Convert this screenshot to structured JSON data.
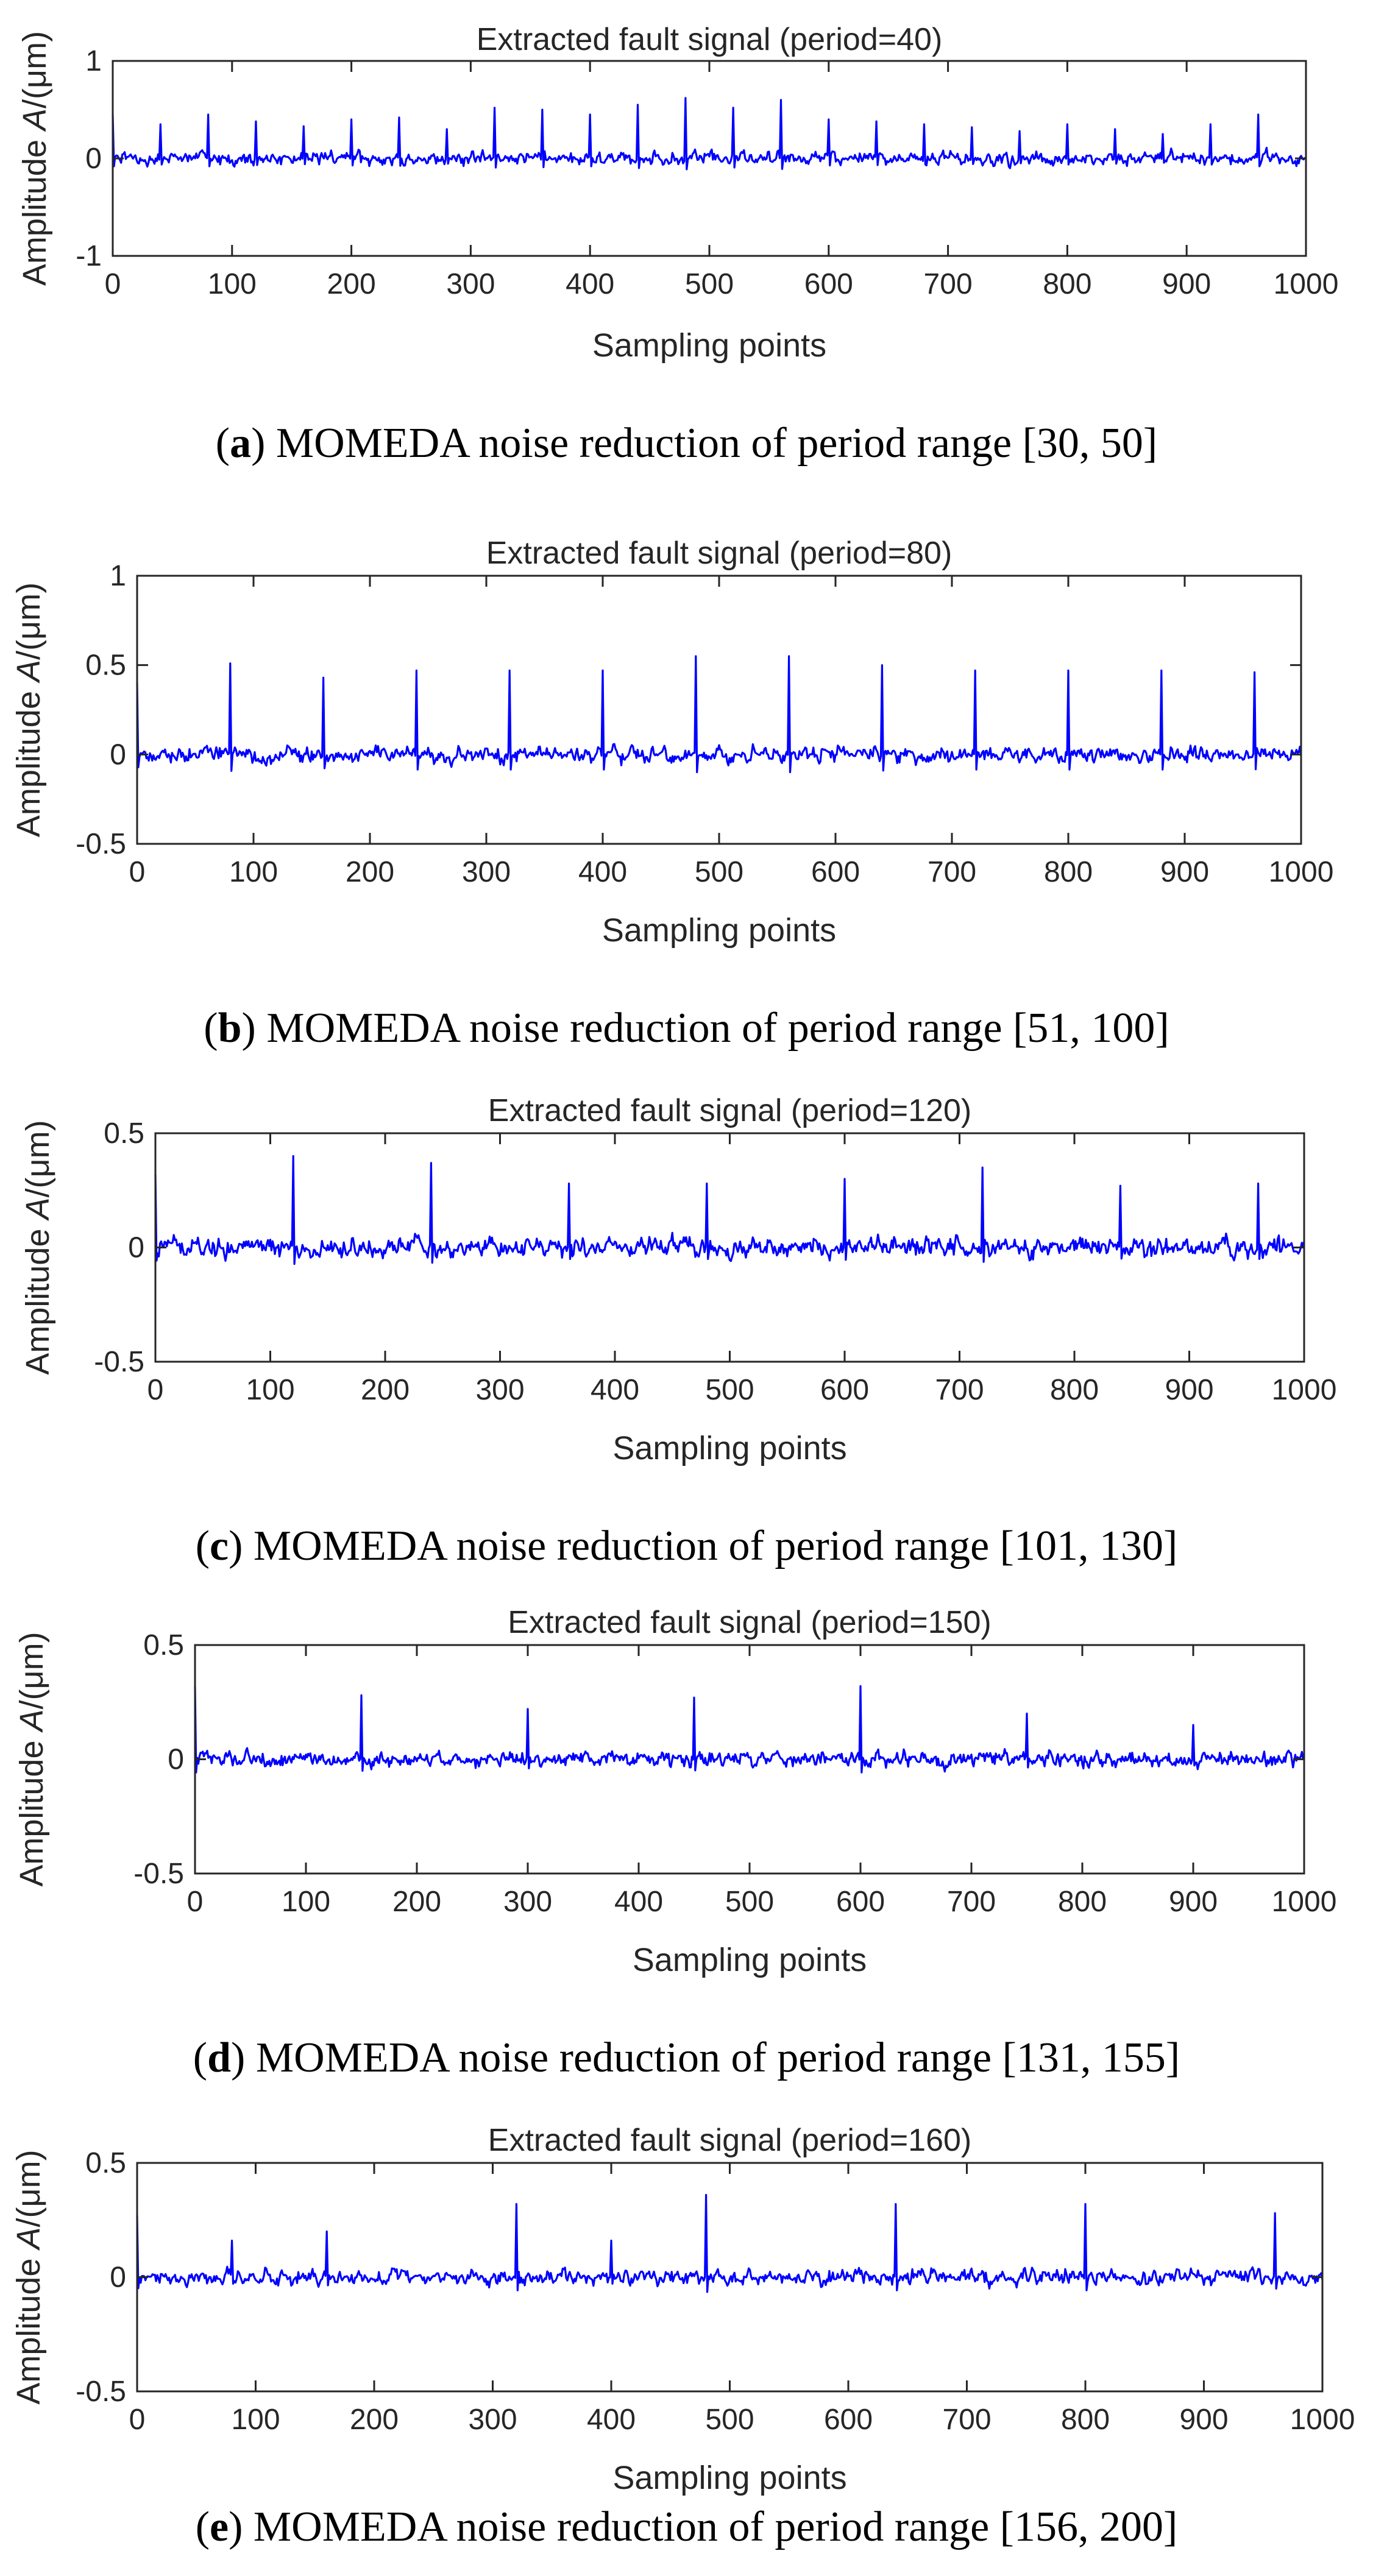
{
  "figure": {
    "ylabel_prefix": "Amplitude ",
    "ylabel_var": "A",
    "ylabel_suffix": "/(μm)"
  },
  "chart_data": [
    {
      "type": "line",
      "title": "Extracted fault signal (period=40)",
      "xlabel": "Sampling points",
      "ylabel": "Amplitude A/(μm)",
      "xlim": [
        0,
        1000
      ],
      "ylim": [
        -1,
        1
      ],
      "xticks": [
        0,
        100,
        200,
        300,
        400,
        500,
        600,
        700,
        800,
        900,
        1000
      ],
      "yticks": [
        -1,
        0,
        1
      ],
      "period": 40,
      "spikes": [
        {
          "x": 0,
          "y": 0.45
        },
        {
          "x": 40,
          "y": 0.35
        },
        {
          "x": 80,
          "y": 0.45
        },
        {
          "x": 120,
          "y": 0.38
        },
        {
          "x": 160,
          "y": 0.33
        },
        {
          "x": 200,
          "y": 0.4
        },
        {
          "x": 240,
          "y": 0.42
        },
        {
          "x": 280,
          "y": 0.3
        },
        {
          "x": 320,
          "y": 0.52
        },
        {
          "x": 360,
          "y": 0.5
        },
        {
          "x": 400,
          "y": 0.45
        },
        {
          "x": 440,
          "y": 0.55
        },
        {
          "x": 480,
          "y": 0.62
        },
        {
          "x": 520,
          "y": 0.52
        },
        {
          "x": 560,
          "y": 0.6
        },
        {
          "x": 600,
          "y": 0.4
        },
        {
          "x": 640,
          "y": 0.38
        },
        {
          "x": 680,
          "y": 0.35
        },
        {
          "x": 720,
          "y": 0.32
        },
        {
          "x": 760,
          "y": 0.28
        },
        {
          "x": 800,
          "y": 0.35
        },
        {
          "x": 840,
          "y": 0.3
        },
        {
          "x": 880,
          "y": 0.25
        },
        {
          "x": 920,
          "y": 0.35
        },
        {
          "x": 960,
          "y": 0.45
        }
      ],
      "noise_amplitude": 0.12,
      "caption_label": "a",
      "caption_text": "MOMEDA noise reduction of period range [30, 50]"
    },
    {
      "type": "line",
      "title": "Extracted fault signal (period=80)",
      "xlabel": "Sampling points",
      "ylabel": "Amplitude A/(μm)",
      "xlim": [
        0,
        1000
      ],
      "ylim": [
        -0.5,
        1
      ],
      "xticks": [
        0,
        100,
        200,
        300,
        400,
        500,
        600,
        700,
        800,
        900,
        1000
      ],
      "yticks": [
        -0.5,
        0,
        0.5,
        1
      ],
      "period": 80,
      "spikes": [
        {
          "x": 0,
          "y": 0.4
        },
        {
          "x": 80,
          "y": 0.51
        },
        {
          "x": 160,
          "y": 0.43
        },
        {
          "x": 240,
          "y": 0.47
        },
        {
          "x": 320,
          "y": 0.47
        },
        {
          "x": 400,
          "y": 0.47
        },
        {
          "x": 480,
          "y": 0.55
        },
        {
          "x": 560,
          "y": 0.55
        },
        {
          "x": 640,
          "y": 0.5
        },
        {
          "x": 720,
          "y": 0.47
        },
        {
          "x": 800,
          "y": 0.47
        },
        {
          "x": 880,
          "y": 0.47
        },
        {
          "x": 960,
          "y": 0.46
        }
      ],
      "noise_amplitude": 0.08,
      "caption_label": "b",
      "caption_text": "MOMEDA noise reduction of period range [51, 100]"
    },
    {
      "type": "line",
      "title": "Extracted fault signal (period=120)",
      "xlabel": "Sampling points",
      "ylabel": "Amplitude A/(μm)",
      "xlim": [
        0,
        1000
      ],
      "ylim": [
        -0.5,
        0.5
      ],
      "xticks": [
        0,
        100,
        200,
        300,
        400,
        500,
        600,
        700,
        800,
        900,
        1000
      ],
      "yticks": [
        -0.5,
        0,
        0.5
      ],
      "period": 120,
      "spikes": [
        {
          "x": 0,
          "y": 0.32
        },
        {
          "x": 120,
          "y": 0.4
        },
        {
          "x": 240,
          "y": 0.37
        },
        {
          "x": 360,
          "y": 0.28
        },
        {
          "x": 480,
          "y": 0.28
        },
        {
          "x": 600,
          "y": 0.3
        },
        {
          "x": 720,
          "y": 0.35
        },
        {
          "x": 840,
          "y": 0.27
        },
        {
          "x": 960,
          "y": 0.28
        }
      ],
      "noise_amplitude": 0.08,
      "caption_label": "c",
      "caption_text": "MOMEDA noise reduction of period range [101, 130]"
    },
    {
      "type": "line",
      "title": "Extracted fault signal (period=150)",
      "xlabel": "Sampling points",
      "ylabel": "Amplitude A/(μm)",
      "xlim": [
        0,
        1000
      ],
      "ylim": [
        -0.5,
        0.5
      ],
      "xticks": [
        0,
        100,
        200,
        300,
        400,
        500,
        600,
        700,
        800,
        900,
        1000
      ],
      "yticks": [
        -0.5,
        0,
        0.5
      ],
      "period": 150,
      "spikes": [
        {
          "x": 0,
          "y": 0.32
        },
        {
          "x": 150,
          "y": 0.28
        },
        {
          "x": 300,
          "y": 0.22
        },
        {
          "x": 450,
          "y": 0.27
        },
        {
          "x": 600,
          "y": 0.32
        },
        {
          "x": 750,
          "y": 0.2
        },
        {
          "x": 900,
          "y": 0.15
        }
      ],
      "noise_amplitude": 0.06,
      "caption_label": "d",
      "caption_text": "MOMEDA noise reduction of period range [131, 155]"
    },
    {
      "type": "line",
      "title": "Extracted fault signal (period=160)",
      "xlabel": "Sampling points",
      "ylabel": "Amplitude A/(μm)",
      "xlim": [
        0,
        1000
      ],
      "ylim": [
        -0.5,
        0.5
      ],
      "xticks": [
        0,
        100,
        200,
        300,
        400,
        500,
        600,
        700,
        800,
        900,
        1000
      ],
      "yticks": [
        -0.5,
        0,
        0.5
      ],
      "period": 160,
      "spikes": [
        {
          "x": 0,
          "y": 0.27
        },
        {
          "x": 80,
          "y": 0.16
        },
        {
          "x": 160,
          "y": 0.2
        },
        {
          "x": 320,
          "y": 0.32
        },
        {
          "x": 400,
          "y": 0.16
        },
        {
          "x": 480,
          "y": 0.36
        },
        {
          "x": 640,
          "y": 0.32
        },
        {
          "x": 800,
          "y": 0.32
        },
        {
          "x": 960,
          "y": 0.28
        }
      ],
      "noise_amplitude": 0.06,
      "caption_label": "e",
      "caption_text": "MOMEDA noise reduction of period range [156, 200]"
    }
  ],
  "colors": {
    "signal": "#0000ff",
    "axes": "#262626",
    "background": "#ffffff"
  }
}
